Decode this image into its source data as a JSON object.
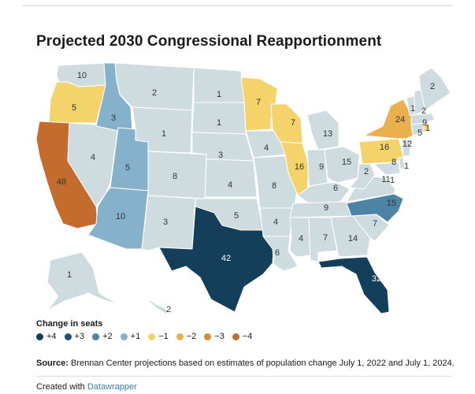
{
  "title": "Projected 2030 Congressional Reapportionment",
  "legend": {
    "title": "Change in seats",
    "items": [
      {
        "label": "+4",
        "color": "#143f5a"
      },
      {
        "label": "+3",
        "color": "#1e5475"
      },
      {
        "label": "+2",
        "color": "#4d84a6"
      },
      {
        "label": "+1",
        "color": "#86b1cb"
      },
      {
        "label": "−1",
        "color": "#f5d36b"
      },
      {
        "label": "−2",
        "color": "#e9b04d"
      },
      {
        "label": "−3",
        "color": "#d98c3b"
      },
      {
        "label": "−4",
        "color": "#c46b2e"
      }
    ]
  },
  "neutral_color": "#cfdcdf",
  "map_labels": [
    {
      "state": "WA",
      "seats": "10",
      "change": "0"
    },
    {
      "state": "OR",
      "seats": "5",
      "change": "−1"
    },
    {
      "state": "CA",
      "seats": "48",
      "change": "−4"
    },
    {
      "state": "ID",
      "seats": "3",
      "change": "+1"
    },
    {
      "state": "NV",
      "seats": "4",
      "change": "0"
    },
    {
      "state": "UT",
      "seats": "5",
      "change": "+1"
    },
    {
      "state": "AZ",
      "seats": "10",
      "change": "+1"
    },
    {
      "state": "MT",
      "seats": "2",
      "change": "0"
    },
    {
      "state": "WY",
      "seats": "1",
      "change": "0"
    },
    {
      "state": "CO",
      "seats": "8",
      "change": "0"
    },
    {
      "state": "NM",
      "seats": "3",
      "change": "0"
    },
    {
      "state": "ND",
      "seats": "1",
      "change": "0"
    },
    {
      "state": "SD",
      "seats": "1",
      "change": "0"
    },
    {
      "state": "NE",
      "seats": "3",
      "change": "0"
    },
    {
      "state": "KS",
      "seats": "4",
      "change": "0"
    },
    {
      "state": "OK",
      "seats": "5",
      "change": "0"
    },
    {
      "state": "TX",
      "seats": "42",
      "change": "+4"
    },
    {
      "state": "MN",
      "seats": "7",
      "change": "−1"
    },
    {
      "state": "IA",
      "seats": "4",
      "change": "0"
    },
    {
      "state": "MO",
      "seats": "8",
      "change": "0"
    },
    {
      "state": "AR",
      "seats": "4",
      "change": "0"
    },
    {
      "state": "LA",
      "seats": "6",
      "change": "0"
    },
    {
      "state": "WI",
      "seats": "7",
      "change": "−1"
    },
    {
      "state": "IL",
      "seats": "16",
      "change": "−1"
    },
    {
      "state": "MI",
      "seats": "13",
      "change": "0"
    },
    {
      "state": "IN",
      "seats": "9",
      "change": "0"
    },
    {
      "state": "OH",
      "seats": "15",
      "change": "0"
    },
    {
      "state": "KY",
      "seats": "6",
      "change": "0"
    },
    {
      "state": "TN",
      "seats": "9",
      "change": "0"
    },
    {
      "state": "MS",
      "seats": "4",
      "change": "0"
    },
    {
      "state": "AL",
      "seats": "7",
      "change": "0"
    },
    {
      "state": "GA",
      "seats": "14",
      "change": "0"
    },
    {
      "state": "FL",
      "seats": "32",
      "change": "+4"
    },
    {
      "state": "SC",
      "seats": "7",
      "change": "0"
    },
    {
      "state": "NC",
      "seats": "15",
      "change": "+1"
    },
    {
      "state": "VA",
      "seats": "11",
      "change": "0"
    },
    {
      "state": "WV",
      "seats": "2",
      "change": "0"
    },
    {
      "state": "PA",
      "seats": "16",
      "change": "−1"
    },
    {
      "state": "NY",
      "seats": "24",
      "change": "−2"
    },
    {
      "state": "ME",
      "seats": "2",
      "change": "0"
    },
    {
      "state": "VT",
      "seats": "1",
      "change": "0"
    },
    {
      "state": "NH",
      "seats": "2",
      "change": "0"
    },
    {
      "state": "MA",
      "seats": "9",
      "change": "0"
    },
    {
      "state": "RI",
      "seats": "1",
      "change": "−1"
    },
    {
      "state": "CT",
      "seats": "5",
      "change": "0"
    },
    {
      "state": "NJ",
      "seats": "12",
      "change": "0"
    },
    {
      "state": "DE",
      "seats": "1",
      "change": "0"
    },
    {
      "state": "MD",
      "seats": "8",
      "change": "0"
    },
    {
      "state": "DC",
      "seats": "1",
      "change": "0"
    },
    {
      "state": "AK",
      "seats": "1",
      "change": "0"
    },
    {
      "state": "HI",
      "seats": "2",
      "change": "0"
    }
  ],
  "source": {
    "label": "Source:",
    "text": "Brennan Center projections based on estimates of population change July 1, 2022 and July 1, 2024."
  },
  "credit": {
    "prefix": "Created with",
    "link": "Datawrapper"
  }
}
